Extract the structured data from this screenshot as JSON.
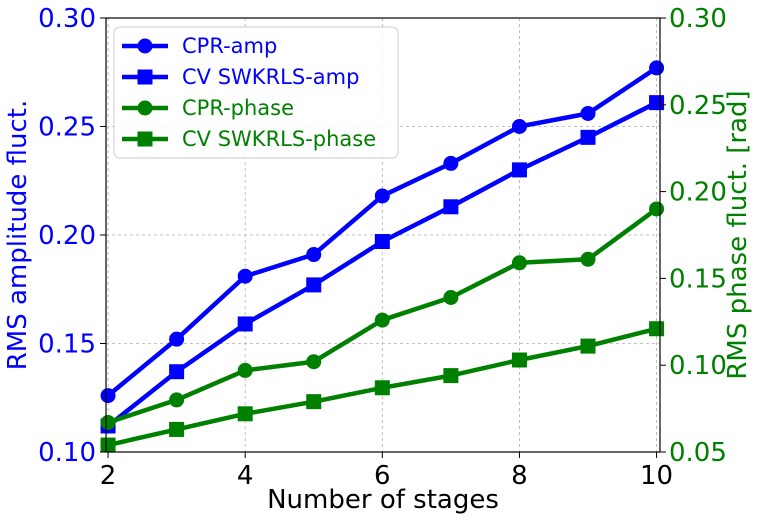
{
  "chart_data": {
    "type": "line",
    "xlabel": "Number of stages",
    "ylabel_left": "RMS amplitude fluct.",
    "ylabel_right": "RMS phase fluct. [rad]",
    "xlim": [
      1.97,
      10.05
    ],
    "ylim_left": [
      0.1,
      0.3
    ],
    "ylim_right": [
      0.05,
      0.3
    ],
    "x_ticks": [
      "2",
      "4",
      "6",
      "8",
      "10"
    ],
    "y_ticks_left": [
      "0.10",
      "0.15",
      "0.20",
      "0.25",
      "0.30"
    ],
    "y_ticks_right": [
      "0.05",
      "0.10",
      "0.15",
      "0.20",
      "0.25",
      "0.30"
    ],
    "grid": true,
    "legend_position": "upper-left",
    "left_axis_color": "#0000ff",
    "right_axis_color": "#008000",
    "x": [
      2,
      3,
      4,
      5,
      6,
      7,
      8,
      9,
      10
    ],
    "series": [
      {
        "name": "CPR-amp",
        "axis": "left",
        "marker": "circle",
        "color": "#0000ff",
        "values": [
          0.126,
          0.152,
          0.181,
          0.191,
          0.218,
          0.233,
          0.25,
          0.256,
          0.277
        ]
      },
      {
        "name": "CV SWKRLS-amp",
        "axis": "left",
        "marker": "square",
        "color": "#0000ff",
        "values": [
          0.112,
          0.137,
          0.159,
          0.177,
          0.197,
          0.213,
          0.23,
          0.245,
          0.261
        ]
      },
      {
        "name": "CPR-phase",
        "axis": "right",
        "marker": "circle",
        "color": "#008000",
        "values": [
          0.067,
          0.08,
          0.097,
          0.102,
          0.126,
          0.139,
          0.159,
          0.161,
          0.19
        ]
      },
      {
        "name": "CV SWKRLS-phase",
        "axis": "right",
        "marker": "square",
        "color": "#008000",
        "values": [
          0.054,
          0.063,
          0.072,
          0.079,
          0.087,
          0.094,
          0.103,
          0.111,
          0.121
        ]
      }
    ]
  }
}
